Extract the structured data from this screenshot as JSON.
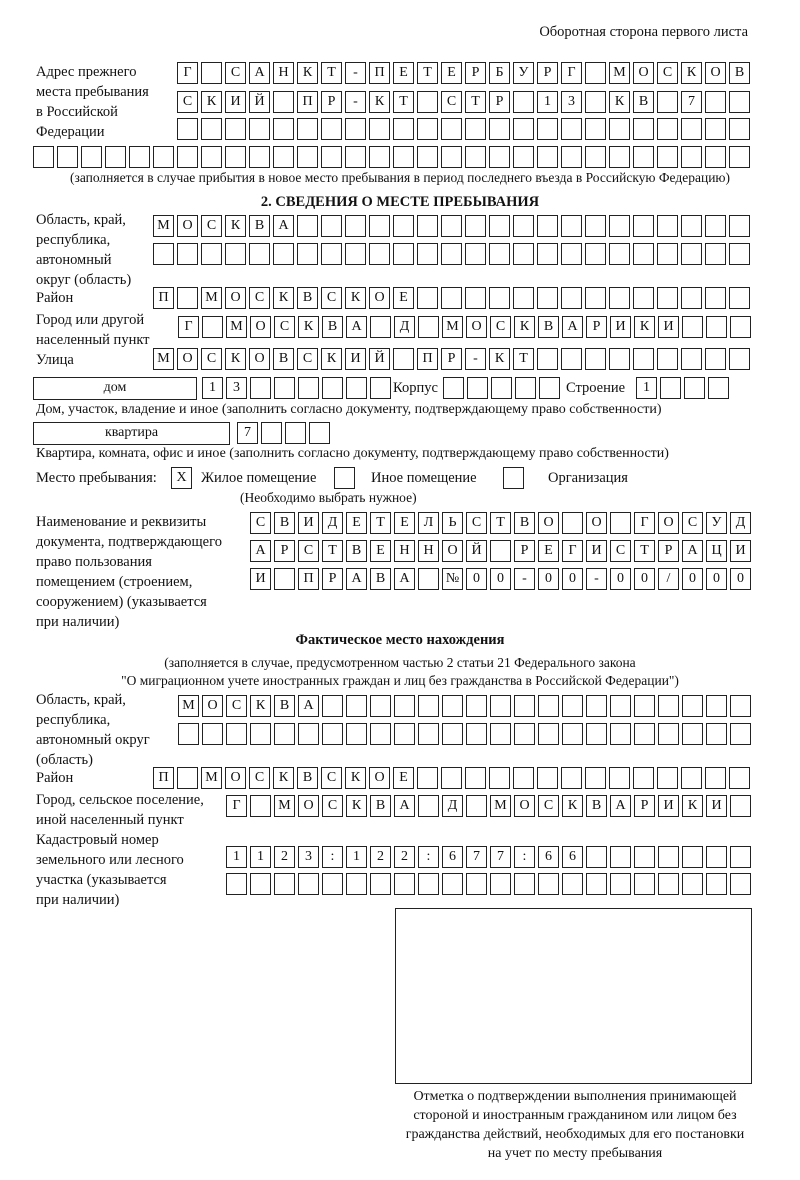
{
  "header": "Оборотная сторона первого листа",
  "prev_address": {
    "label": [
      "Адрес прежнего",
      "места пребывания",
      "в Российской",
      "Федерации"
    ],
    "row1": [
      "Г",
      "",
      "С",
      "А",
      "Н",
      "К",
      "Т",
      "-",
      "П",
      "Е",
      "Т",
      "Е",
      "Р",
      "Б",
      "У",
      "Р",
      "Г",
      "",
      "М",
      "О",
      "С",
      "К",
      "О",
      "В"
    ],
    "row2": [
      "С",
      "К",
      "И",
      "Й",
      "",
      "П",
      "Р",
      "-",
      "К",
      "Т",
      "",
      "С",
      "Т",
      "Р",
      "",
      "1",
      "3",
      "",
      "К",
      "В",
      "",
      "7",
      "",
      ""
    ],
    "row3": [
      "",
      "",
      "",
      "",
      "",
      "",
      "",
      "",
      "",
      "",
      "",
      "",
      "",
      "",
      "",
      "",
      "",
      "",
      "",
      "",
      "",
      "",
      "",
      ""
    ],
    "row4": [
      "",
      "",
      "",
      "",
      "",
      "",
      "",
      "",
      "",
      "",
      "",
      "",
      "",
      "",
      "",
      "",
      "",
      "",
      "",
      "",
      "",
      "",
      "",
      "",
      "",
      "",
      "",
      "",
      "",
      ""
    ],
    "note": "(заполняется в случае прибытия в новое место пребывания в период последнего въезда в Российскую Федерацию)"
  },
  "section2": {
    "title": "2. СВЕДЕНИЯ О МЕСТЕ ПРЕБЫВАНИЯ",
    "region_label": [
      "Область, край,",
      "республика,",
      "автономный",
      "округ (область)"
    ],
    "region1": [
      "М",
      "О",
      "С",
      "К",
      "В",
      "А",
      "",
      "",
      "",
      "",
      "",
      "",
      "",
      "",
      "",
      "",
      "",
      "",
      "",
      "",
      "",
      "",
      "",
      "",
      ""
    ],
    "region2": [
      "",
      "",
      "",
      "",
      "",
      "",
      "",
      "",
      "",
      "",
      "",
      "",
      "",
      "",
      "",
      "",
      "",
      "",
      "",
      "",
      "",
      "",
      "",
      "",
      ""
    ],
    "district_label": "Район",
    "district": [
      "П",
      "",
      "М",
      "О",
      "С",
      "К",
      "В",
      "С",
      "К",
      "О",
      "Е",
      "",
      "",
      "",
      "",
      "",
      "",
      "",
      "",
      "",
      "",
      "",
      "",
      "",
      ""
    ],
    "city_label": [
      "Город или другой",
      "населенный пункт"
    ],
    "city": [
      "Г",
      "",
      "М",
      "О",
      "С",
      "К",
      "В",
      "А",
      "",
      "Д",
      "",
      "М",
      "О",
      "С",
      "К",
      "В",
      "А",
      "Р",
      "И",
      "К",
      "И",
      "",
      "",
      ""
    ],
    "street_label": "Улица",
    "street": [
      "М",
      "О",
      "С",
      "К",
      "О",
      "В",
      "С",
      "К",
      "И",
      "Й",
      "",
      "П",
      "Р",
      "-",
      "К",
      "Т",
      "",
      "",
      "",
      "",
      "",
      "",
      "",
      "",
      ""
    ],
    "house_type": "дом",
    "house": [
      "1",
      "3",
      "",
      "",
      "",
      "",
      "",
      ""
    ],
    "korpus_label": "Корпус",
    "korpus": [
      "",
      "",
      "",
      "",
      ""
    ],
    "building_label": "Строение",
    "building": [
      "1",
      "",
      "",
      ""
    ],
    "house_note": "Дом, участок, владение и иное (заполнить согласно документу, подтверждающему право собственности)",
    "flat_type": "квартира",
    "flat": [
      "7",
      "",
      "",
      ""
    ],
    "flat_note": "Квартира, комната, офис и иное (заполнить согласно документу, подтверждающему право собственности)",
    "stay_label": "Место пребывания:",
    "stay_options": [
      {
        "mark": "X",
        "label": "Жилое помещение",
        "checked": true
      },
      {
        "mark": "",
        "label": "Иное помещение",
        "checked": false
      },
      {
        "mark": "",
        "label": "Организация",
        "checked": false
      }
    ],
    "stay_note": "(Необходимо выбрать нужное)",
    "doc_label": [
      "Наименование и реквизиты",
      "документа, подтверждающего",
      "право пользования",
      "помещением (строением,",
      "сооружением) (указывается",
      "при наличии)"
    ],
    "doc1": [
      "С",
      "В",
      "И",
      "Д",
      "Е",
      "Т",
      "Е",
      "Л",
      "Ь",
      "С",
      "Т",
      "В",
      "О",
      "",
      "О",
      "",
      "Г",
      "О",
      "С",
      "У",
      "Д"
    ],
    "doc2": [
      "А",
      "Р",
      "С",
      "Т",
      "В",
      "Е",
      "Н",
      "Н",
      "О",
      "Й",
      "",
      "Р",
      "Е",
      "Г",
      "И",
      "С",
      "Т",
      "Р",
      "А",
      "Ц",
      "И"
    ],
    "doc3": [
      "И",
      "",
      "П",
      "Р",
      "А",
      "В",
      "А",
      "",
      "№",
      "0",
      "0",
      "-",
      "0",
      "0",
      "-",
      "0",
      "0",
      "/",
      "0",
      "0",
      "0"
    ]
  },
  "actual": {
    "title": "Фактическое место нахождения",
    "note": [
      "(заполняется в случае, предусмотренном частью 2 статьи 21 Федерального закона",
      "\"О миграционном учете иностранных граждан и лиц без гражданства в Российской Федерации\")"
    ],
    "region_label": [
      "Область, край,",
      "республика,",
      "автономный округ",
      "(область)"
    ],
    "region1": [
      "М",
      "О",
      "С",
      "К",
      "В",
      "А",
      "",
      "",
      "",
      "",
      "",
      "",
      "",
      "",
      "",
      "",
      "",
      "",
      "",
      "",
      "",
      "",
      "",
      ""
    ],
    "region2": [
      "",
      "",
      "",
      "",
      "",
      "",
      "",
      "",
      "",
      "",
      "",
      "",
      "",
      "",
      "",
      "",
      "",
      "",
      "",
      "",
      "",
      "",
      "",
      ""
    ],
    "district_label": "Район",
    "district": [
      "П",
      "",
      "М",
      "О",
      "С",
      "К",
      "В",
      "С",
      "К",
      "О",
      "Е",
      "",
      "",
      "",
      "",
      "",
      "",
      "",
      "",
      "",
      "",
      "",
      "",
      "",
      ""
    ],
    "city_label": [
      "Город, сельское поселение,",
      "иной населенный пункт"
    ],
    "city": [
      "Г",
      "",
      "М",
      "О",
      "С",
      "К",
      "В",
      "А",
      "",
      "Д",
      "",
      "М",
      "О",
      "С",
      "К",
      "В",
      "А",
      "Р",
      "И",
      "К",
      "И",
      ""
    ],
    "cadastre_label": [
      "Кадастровый номер",
      "земельного или лесного",
      "участка (указывается",
      "при наличии)"
    ],
    "cadastre1": [
      "1",
      "1",
      "2",
      "3",
      ":",
      "1",
      "2",
      "2",
      ":",
      "6",
      "7",
      "7",
      ":",
      "6",
      "6",
      "",
      "",
      "",
      "",
      "",
      "",
      ""
    ],
    "cadastre2": [
      "",
      "",
      "",
      "",
      "",
      "",
      "",
      "",
      "",
      "",
      "",
      "",
      "",
      "",
      "",
      "",
      "",
      "",
      "",
      "",
      "",
      ""
    ]
  },
  "stamp_caption": [
    "Отметка о подтверждении выполнения принимающей",
    "стороной и иностранным гражданином или лицом без",
    "гражданства действий, необходимых для его постановки",
    "на учет по месту пребывания"
  ]
}
